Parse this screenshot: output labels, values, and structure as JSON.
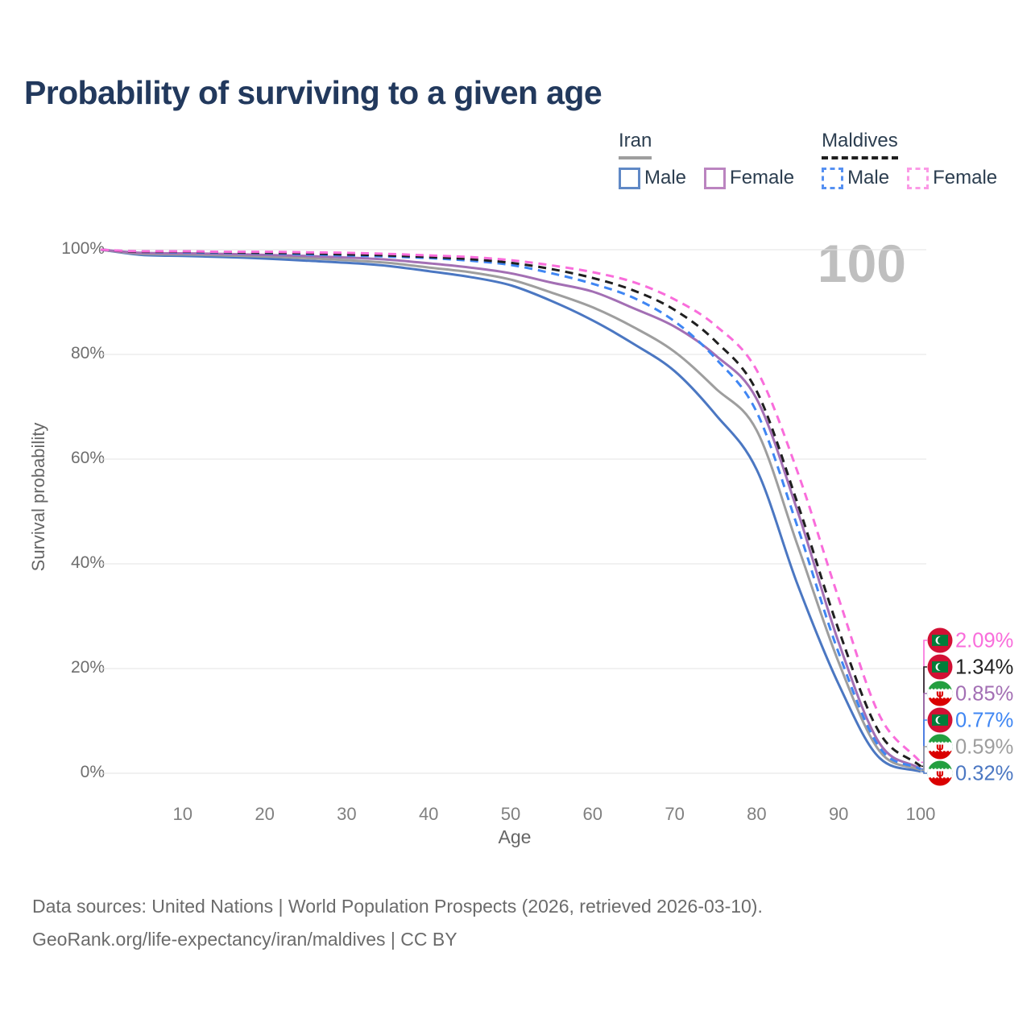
{
  "title": "Probability of surviving to a given age",
  "watermark": "100",
  "legend": {
    "groups": [
      {
        "id": "iran",
        "title": "Iran",
        "line_style": "solid",
        "header_line_color": "#9e9e9e",
        "items": [
          {
            "label": "Male",
            "swatch_color": "#6089c6",
            "dashed": false
          },
          {
            "label": "Female",
            "swatch_color": "#bb84c0",
            "dashed": false
          }
        ]
      },
      {
        "id": "maldives",
        "title": "Maldives",
        "line_style": "dashed",
        "header_line_color": "#1f1f1f",
        "items": [
          {
            "label": "Male",
            "swatch_color": "#5590f2",
            "dashed": true
          },
          {
            "label": "Female",
            "swatch_color": "#fb9ae6",
            "dashed": true
          }
        ]
      }
    ]
  },
  "chart_data": {
    "type": "line",
    "title": "Probability of surviving to a given age",
    "xlabel": "Age",
    "ylabel": "Survival probability",
    "xlim": [
      0,
      100
    ],
    "ylim": [
      0,
      100
    ],
    "grid": "horizontal",
    "x_tick_values": [
      10,
      20,
      30,
      40,
      50,
      60,
      70,
      80,
      90,
      100
    ],
    "x_tick_labels": [
      "10",
      "20",
      "30",
      "40",
      "50",
      "60",
      "70",
      "80",
      "90",
      "100"
    ],
    "y_tick_values": [
      0,
      20,
      40,
      60,
      80,
      100
    ],
    "y_tick_labels": [
      "0%",
      "20%",
      "40%",
      "60%",
      "80%",
      "100%"
    ],
    "ages": [
      0,
      5,
      10,
      15,
      20,
      25,
      30,
      35,
      40,
      45,
      50,
      55,
      60,
      65,
      70,
      75,
      80,
      85,
      90,
      95,
      100
    ],
    "series": [
      {
        "id": "iran-male",
        "name": "Iran Male",
        "country": "iran",
        "sex": "male",
        "color": "#4b77c2",
        "dashed": false,
        "end_label": "0.32%",
        "end_value": 0.32,
        "values": [
          100,
          99.0,
          98.8,
          98.6,
          98.3,
          97.9,
          97.5,
          96.9,
          95.9,
          94.8,
          93.2,
          90.2,
          86.5,
          82.0,
          76.8,
          68.5,
          58.0,
          36.0,
          17.0,
          2.9,
          0.32
        ]
      },
      {
        "id": "iran-total",
        "name": "Iran",
        "country": "iran",
        "sex": "both",
        "color": "#9e9e9e",
        "dashed": false,
        "end_label": "0.59%",
        "end_value": 0.59,
        "values": [
          100,
          99.2,
          99.1,
          98.9,
          98.7,
          98.4,
          98.0,
          97.5,
          96.6,
          95.7,
          94.3,
          91.8,
          89.0,
          85.2,
          80.5,
          73.5,
          65.5,
          43.5,
          21.2,
          4.2,
          0.59
        ]
      },
      {
        "id": "iran-female",
        "name": "Iran Female",
        "country": "iran",
        "sex": "female",
        "color": "#a36fb4",
        "dashed": false,
        "end_label": "0.85%",
        "end_value": 0.85,
        "values": [
          100,
          99.4,
          99.3,
          99.2,
          99.0,
          98.8,
          98.5,
          98.1,
          97.4,
          96.6,
          95.5,
          93.7,
          92.0,
          88.8,
          85.3,
          79.8,
          71.5,
          50.0,
          25.0,
          5.7,
          0.85
        ]
      },
      {
        "id": "maldives-male",
        "name": "Maldives Male",
        "country": "maldives",
        "sex": "male",
        "color": "#3f86f3",
        "dashed": true,
        "end_label": "0.77%",
        "end_value": 0.77,
        "values": [
          100,
          99.6,
          99.5,
          99.4,
          99.3,
          99.1,
          98.9,
          98.7,
          98.4,
          97.9,
          97.1,
          95.5,
          93.5,
          90.8,
          86.3,
          79.2,
          69.0,
          47.0,
          23.0,
          4.9,
          0.77
        ]
      },
      {
        "id": "maldives-total",
        "name": "Maldives",
        "country": "maldives",
        "sex": "both",
        "color": "#1f1f1f",
        "dashed": true,
        "end_label": "1.34%",
        "end_value": 1.34,
        "values": [
          100,
          99.6,
          99.6,
          99.5,
          99.4,
          99.3,
          99.1,
          98.9,
          98.6,
          98.2,
          97.5,
          96.3,
          94.6,
          92.2,
          88.5,
          82.5,
          73.0,
          51.5,
          27.4,
          7.7,
          1.34
        ]
      },
      {
        "id": "maldives-female",
        "name": "Maldives Female",
        "country": "maldives",
        "sex": "female",
        "color": "#f96ddb",
        "dashed": true,
        "end_label": "2.09%",
        "end_value": 2.09,
        "values": [
          100,
          99.7,
          99.7,
          99.6,
          99.6,
          99.5,
          99.4,
          99.2,
          98.9,
          98.6,
          98.0,
          97.0,
          95.7,
          93.8,
          90.5,
          85.5,
          77.0,
          57.5,
          33.4,
          11.0,
          2.09
        ]
      }
    ],
    "flag_colors": {
      "maldives_red": "#D21034",
      "maldives_green": "#007E3A",
      "iran_green": "#239F40",
      "iran_white": "#ffffff",
      "iran_red": "#DA0000"
    },
    "legend_position": "top-right"
  },
  "footer": {
    "line1": "Data sources: United Nations | World Population Prospects (2026, retrieved 2026-03-10).",
    "line2": "GeoRank.org/life-expectancy/iran/maldives | CC BY"
  }
}
